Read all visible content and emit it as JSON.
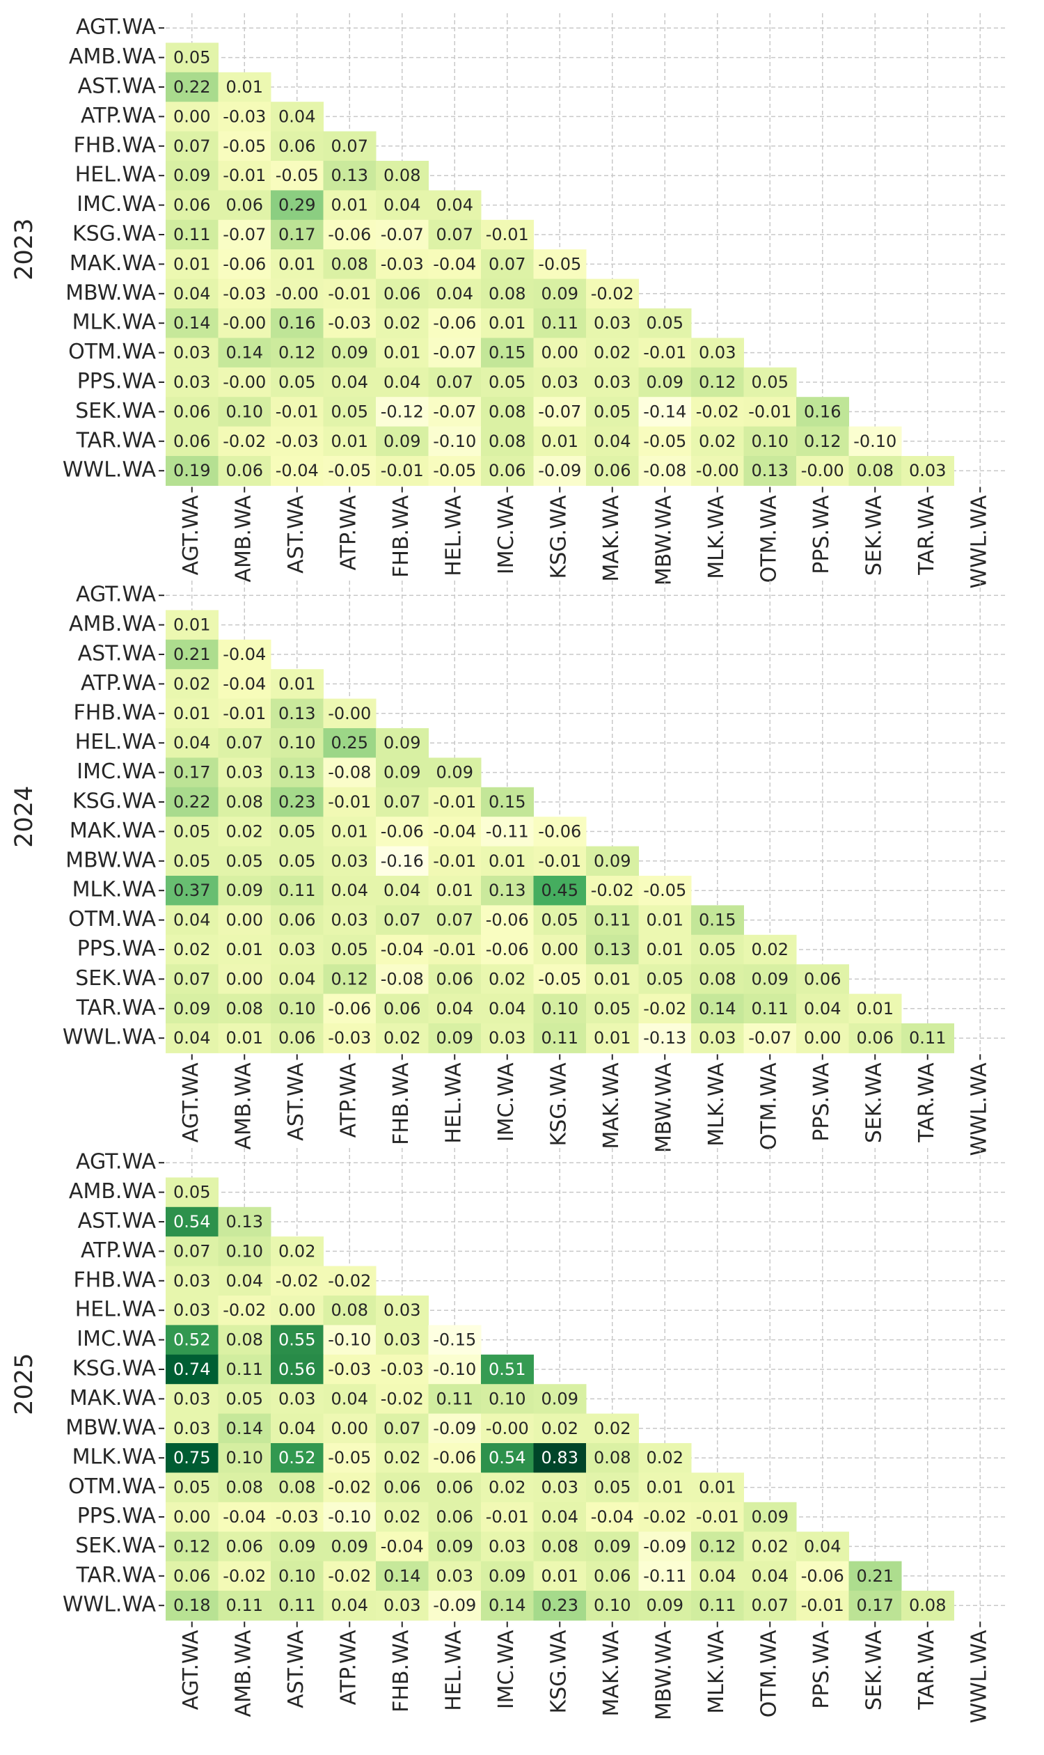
{
  "chart_data": [
    {
      "type": "heatmap",
      "ylabel": "2023",
      "categories": [
        "AGT.WA",
        "AMB.WA",
        "AST.WA",
        "ATP.WA",
        "FHB.WA",
        "HEL.WA",
        "IMC.WA",
        "KSG.WA",
        "MAK.WA",
        "MBW.WA",
        "MLK.WA",
        "OTM.WA",
        "PPS.WA",
        "SEK.WA",
        "TAR.WA",
        "WWL.WA"
      ],
      "colors": [
        "#ffffe5",
        "#f7fcb9",
        "#d9f0a3",
        "#addd8e",
        "#78c679",
        "#41ab5d",
        "#238443",
        "#006837",
        "#004529"
      ],
      "grid": true,
      "values": [
        [],
        [
          0.05
        ],
        [
          0.22,
          0.01
        ],
        [
          0,
          -0.03,
          0.04
        ],
        [
          0.07,
          -0.05,
          0.06,
          0.07
        ],
        [
          0.09,
          -0.01,
          -0.05,
          0.13,
          0.08
        ],
        [
          0.06,
          0.06,
          0.29,
          0.01,
          0.04,
          0.04
        ],
        [
          0.11,
          -0.07,
          0.17,
          -0.06,
          -0.07,
          0.07,
          -0.01
        ],
        [
          0.01,
          -0.06,
          0.01,
          0.08,
          -0.03,
          -0.04,
          0.07,
          -0.05
        ],
        [
          0.04,
          -0.03,
          0,
          -0.01,
          0.06,
          0.04,
          0.08,
          0.09,
          -0.02
        ],
        [
          0.14,
          0,
          0.16,
          -0.03,
          0.02,
          -0.06,
          0.01,
          0.11,
          0.03,
          0.05
        ],
        [
          0.03,
          0.14,
          0.12,
          0.09,
          0.01,
          -0.07,
          0.15,
          0,
          0.02,
          -0.01,
          0.03
        ],
        [
          0.03,
          0,
          0.05,
          0.04,
          0.04,
          0.07,
          0.05,
          0.03,
          0.03,
          0.09,
          0.12,
          0.05
        ],
        [
          0.06,
          0.1,
          -0.01,
          0.05,
          -0.12,
          -0.07,
          0.08,
          -0.07,
          0.05,
          -0.14,
          -0.02,
          -0.01,
          0.16
        ],
        [
          0.06,
          -0.02,
          -0.03,
          0.01,
          0.09,
          -0.1,
          0.08,
          0.01,
          0.04,
          -0.05,
          0.02,
          0.1,
          0.12,
          -0.1
        ],
        [
          0.19,
          0.06,
          -0.04,
          -0.05,
          -0.01,
          -0.05,
          0.06,
          -0.09,
          0.06,
          -0.08,
          0,
          0.13,
          0,
          0.08,
          0.03
        ]
      ],
      "value_labels": [
        [],
        [
          "0.05"
        ],
        [
          "0.22",
          "0.01"
        ],
        [
          "0.00",
          "-0.03",
          "0.04"
        ],
        [
          "0.07",
          "-0.05",
          "0.06",
          "0.07"
        ],
        [
          "0.09",
          "-0.01",
          "-0.05",
          "0.13",
          "0.08"
        ],
        [
          "0.06",
          "0.06",
          "0.29",
          "0.01",
          "0.04",
          "0.04"
        ],
        [
          "0.11",
          "-0.07",
          "0.17",
          "-0.06",
          "-0.07",
          "0.07",
          "-0.01"
        ],
        [
          "0.01",
          "-0.06",
          "0.01",
          "0.08",
          "-0.03",
          "-0.04",
          "0.07",
          "-0.05"
        ],
        [
          "0.04",
          "-0.03",
          "-0.00",
          "-0.01",
          "0.06",
          "0.04",
          "0.08",
          "0.09",
          "-0.02"
        ],
        [
          "0.14",
          "-0.00",
          "0.16",
          "-0.03",
          "0.02",
          "-0.06",
          "0.01",
          "0.11",
          "0.03",
          "0.05"
        ],
        [
          "0.03",
          "0.14",
          "0.12",
          "0.09",
          "0.01",
          "-0.07",
          "0.15",
          "0.00",
          "0.02",
          "-0.01",
          "0.03"
        ],
        [
          "0.03",
          "-0.00",
          "0.05",
          "0.04",
          "0.04",
          "0.07",
          "0.05",
          "0.03",
          "0.03",
          "0.09",
          "0.12",
          "0.05"
        ],
        [
          "0.06",
          "0.10",
          "-0.01",
          "0.05",
          "-0.12",
          "-0.07",
          "0.08",
          "-0.07",
          "0.05",
          "-0.14",
          "-0.02",
          "-0.01",
          "0.16"
        ],
        [
          "0.06",
          "-0.02",
          "-0.03",
          "0.01",
          "0.09",
          "-0.10",
          "0.08",
          "0.01",
          "0.04",
          "-0.05",
          "0.02",
          "0.10",
          "0.12",
          "-0.10"
        ],
        [
          "0.19",
          "0.06",
          "-0.04",
          "-0.05",
          "-0.01",
          "-0.05",
          "0.06",
          "-0.09",
          "0.06",
          "-0.08",
          "-0.00",
          "0.13",
          "-0.00",
          "0.08",
          "0.03"
        ]
      ]
    },
    {
      "type": "heatmap",
      "ylabel": "2024",
      "categories": [
        "AGT.WA",
        "AMB.WA",
        "AST.WA",
        "ATP.WA",
        "FHB.WA",
        "HEL.WA",
        "IMC.WA",
        "KSG.WA",
        "MAK.WA",
        "MBW.WA",
        "MLK.WA",
        "OTM.WA",
        "PPS.WA",
        "SEK.WA",
        "TAR.WA",
        "WWL.WA"
      ],
      "colors": [
        "#ffffe5",
        "#f7fcb9",
        "#d9f0a3",
        "#addd8e",
        "#78c679",
        "#41ab5d",
        "#238443",
        "#006837",
        "#004529"
      ],
      "grid": true,
      "values": [
        [],
        [
          0.01
        ],
        [
          0.21,
          -0.04
        ],
        [
          0.02,
          -0.04,
          0.01
        ],
        [
          0.01,
          -0.01,
          0.13,
          0
        ],
        [
          0.04,
          0.07,
          0.1,
          0.25,
          0.09
        ],
        [
          0.17,
          0.03,
          0.13,
          -0.08,
          0.09,
          0.09
        ],
        [
          0.22,
          0.08,
          0.23,
          -0.01,
          0.07,
          -0.01,
          0.15
        ],
        [
          0.05,
          0.02,
          0.05,
          0.01,
          -0.06,
          -0.04,
          -0.11,
          -0.06
        ],
        [
          0.05,
          0.05,
          0.05,
          0.03,
          -0.16,
          -0.01,
          0.01,
          -0.01,
          0.09
        ],
        [
          0.37,
          0.09,
          0.11,
          0.04,
          0.04,
          0.01,
          0.13,
          0.45,
          -0.02,
          -0.05
        ],
        [
          0.04,
          0,
          0.06,
          0.03,
          0.07,
          0.07,
          -0.06,
          0.05,
          0.11,
          0.01,
          0.15
        ],
        [
          0.02,
          0.01,
          0.03,
          0.05,
          -0.04,
          -0.01,
          -0.06,
          0,
          0.13,
          0.01,
          0.05,
          0.02
        ],
        [
          0.07,
          0,
          0.04,
          0.12,
          -0.08,
          0.06,
          0.02,
          -0.05,
          0.01,
          0.05,
          0.08,
          0.09,
          0.06
        ],
        [
          0.09,
          0.08,
          0.1,
          -0.06,
          0.06,
          0.04,
          0.04,
          0.1,
          0.05,
          -0.02,
          0.14,
          0.11,
          0.04,
          0.01
        ],
        [
          0.04,
          0.01,
          0.06,
          -0.03,
          0.02,
          0.09,
          0.03,
          0.11,
          0.01,
          -0.13,
          0.03,
          -0.07,
          0,
          0.06,
          0.11
        ]
      ],
      "value_labels": [
        [],
        [
          "0.01"
        ],
        [
          "0.21",
          "-0.04"
        ],
        [
          "0.02",
          "-0.04",
          "0.01"
        ],
        [
          "0.01",
          "-0.01",
          "0.13",
          "-0.00"
        ],
        [
          "0.04",
          "0.07",
          "0.10",
          "0.25",
          "0.09"
        ],
        [
          "0.17",
          "0.03",
          "0.13",
          "-0.08",
          "0.09",
          "0.09"
        ],
        [
          "0.22",
          "0.08",
          "0.23",
          "-0.01",
          "0.07",
          "-0.01",
          "0.15"
        ],
        [
          "0.05",
          "0.02",
          "0.05",
          "0.01",
          "-0.06",
          "-0.04",
          "-0.11",
          "-0.06"
        ],
        [
          "0.05",
          "0.05",
          "0.05",
          "0.03",
          "-0.16",
          "-0.01",
          "0.01",
          "-0.01",
          "0.09"
        ],
        [
          "0.37",
          "0.09",
          "0.11",
          "0.04",
          "0.04",
          "0.01",
          "0.13",
          "0.45",
          "-0.02",
          "-0.05"
        ],
        [
          "0.04",
          "0.00",
          "0.06",
          "0.03",
          "0.07",
          "0.07",
          "-0.06",
          "0.05",
          "0.11",
          "0.01",
          "0.15"
        ],
        [
          "0.02",
          "0.01",
          "0.03",
          "0.05",
          "-0.04",
          "-0.01",
          "-0.06",
          "0.00",
          "0.13",
          "0.01",
          "0.05",
          "0.02"
        ],
        [
          "0.07",
          "0.00",
          "0.04",
          "0.12",
          "-0.08",
          "0.06",
          "0.02",
          "-0.05",
          "0.01",
          "0.05",
          "0.08",
          "0.09",
          "0.06"
        ],
        [
          "0.09",
          "0.08",
          "0.10",
          "-0.06",
          "0.06",
          "0.04",
          "0.04",
          "0.10",
          "0.05",
          "-0.02",
          "0.14",
          "0.11",
          "0.04",
          "0.01"
        ],
        [
          "0.04",
          "0.01",
          "0.06",
          "-0.03",
          "0.02",
          "0.09",
          "0.03",
          "0.11",
          "0.01",
          "-0.13",
          "0.03",
          "-0.07",
          "0.00",
          "0.06",
          "0.11"
        ]
      ]
    },
    {
      "type": "heatmap",
      "ylabel": "2025",
      "categories": [
        "AGT.WA",
        "AMB.WA",
        "AST.WA",
        "ATP.WA",
        "FHB.WA",
        "HEL.WA",
        "IMC.WA",
        "KSG.WA",
        "MAK.WA",
        "MBW.WA",
        "MLK.WA",
        "OTM.WA",
        "PPS.WA",
        "SEK.WA",
        "TAR.WA",
        "WWL.WA"
      ],
      "colors": [
        "#ffffe5",
        "#f7fcb9",
        "#d9f0a3",
        "#addd8e",
        "#78c679",
        "#41ab5d",
        "#238443",
        "#006837",
        "#004529"
      ],
      "grid": true,
      "values": [
        [],
        [
          0.05
        ],
        [
          0.54,
          0.13
        ],
        [
          0.07,
          0.1,
          0.02
        ],
        [
          0.03,
          0.04,
          -0.02,
          -0.02
        ],
        [
          0.03,
          -0.02,
          0,
          0.08,
          0.03
        ],
        [
          0.52,
          0.08,
          0.55,
          -0.1,
          0.03,
          -0.15
        ],
        [
          0.74,
          0.11,
          0.56,
          -0.03,
          -0.03,
          -0.1,
          0.51
        ],
        [
          0.03,
          0.05,
          0.03,
          0.04,
          -0.02,
          0.11,
          0.1,
          0.09
        ],
        [
          0.03,
          0.14,
          0.04,
          0,
          0.07,
          -0.09,
          0,
          0.02,
          0.02
        ],
        [
          0.75,
          0.1,
          0.52,
          -0.05,
          0.02,
          -0.06,
          0.54,
          0.83,
          0.08,
          0.02
        ],
        [
          0.05,
          0.08,
          0.08,
          -0.02,
          0.06,
          0.06,
          0.02,
          0.03,
          0.05,
          0.01,
          0.01
        ],
        [
          0,
          -0.04,
          -0.03,
          -0.1,
          0.02,
          0.06,
          -0.01,
          0.04,
          -0.04,
          -0.02,
          -0.01,
          0.09
        ],
        [
          0.12,
          0.06,
          0.09,
          0.09,
          -0.04,
          0.09,
          0.03,
          0.08,
          0.09,
          -0.09,
          0.12,
          0.02,
          0.04
        ],
        [
          0.06,
          -0.02,
          0.1,
          -0.02,
          0.14,
          0.03,
          0.09,
          0.01,
          0.06,
          -0.11,
          0.04,
          0.04,
          -0.06,
          0.21
        ],
        [
          0.18,
          0.11,
          0.11,
          0.04,
          0.03,
          -0.09,
          0.14,
          0.23,
          0.1,
          0.09,
          0.11,
          0.07,
          -0.01,
          0.17,
          0.08
        ]
      ],
      "value_labels": [
        [],
        [
          "0.05"
        ],
        [
          "0.54",
          "0.13"
        ],
        [
          "0.07",
          "0.10",
          "0.02"
        ],
        [
          "0.03",
          "0.04",
          "-0.02",
          "-0.02"
        ],
        [
          "0.03",
          "-0.02",
          "0.00",
          "0.08",
          "0.03"
        ],
        [
          "0.52",
          "0.08",
          "0.55",
          "-0.10",
          "0.03",
          "-0.15"
        ],
        [
          "0.74",
          "0.11",
          "0.56",
          "-0.03",
          "-0.03",
          "-0.10",
          "0.51"
        ],
        [
          "0.03",
          "0.05",
          "0.03",
          "0.04",
          "-0.02",
          "0.11",
          "0.10",
          "0.09"
        ],
        [
          "0.03",
          "0.14",
          "0.04",
          "0.00",
          "0.07",
          "-0.09",
          "-0.00",
          "0.02",
          "0.02"
        ],
        [
          "0.75",
          "0.10",
          "0.52",
          "-0.05",
          "0.02",
          "-0.06",
          "0.54",
          "0.83",
          "0.08",
          "0.02"
        ],
        [
          "0.05",
          "0.08",
          "0.08",
          "-0.02",
          "0.06",
          "0.06",
          "0.02",
          "0.03",
          "0.05",
          "0.01",
          "0.01"
        ],
        [
          "0.00",
          "-0.04",
          "-0.03",
          "-0.10",
          "0.02",
          "0.06",
          "-0.01",
          "0.04",
          "-0.04",
          "-0.02",
          "-0.01",
          "0.09"
        ],
        [
          "0.12",
          "0.06",
          "0.09",
          "0.09",
          "-0.04",
          "0.09",
          "0.03",
          "0.08",
          "0.09",
          "-0.09",
          "0.12",
          "0.02",
          "0.04"
        ],
        [
          "0.06",
          "-0.02",
          "0.10",
          "-0.02",
          "0.14",
          "0.03",
          "0.09",
          "0.01",
          "0.06",
          "-0.11",
          "0.04",
          "0.04",
          "-0.06",
          "0.21"
        ],
        [
          "0.18",
          "0.11",
          "0.11",
          "0.04",
          "0.03",
          "-0.09",
          "0.14",
          "0.23",
          "0.10",
          "0.09",
          "0.11",
          "0.07",
          "-0.01",
          "0.17",
          "0.08"
        ]
      ]
    }
  ]
}
